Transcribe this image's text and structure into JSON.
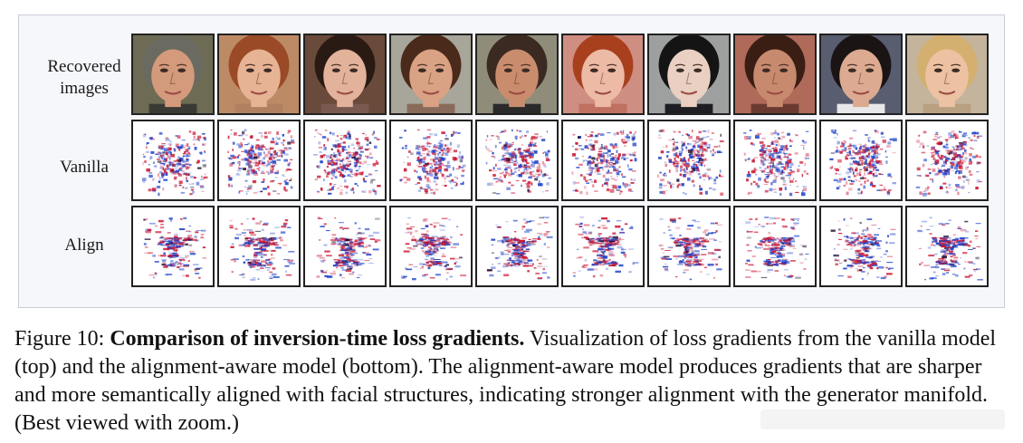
{
  "figure": {
    "row_labels": {
      "recovered_line1": "Recovered",
      "recovered_line2": "images",
      "vanilla": "Vanilla",
      "align": "Align"
    },
    "faces": [
      {
        "skin": "#d49a7c",
        "hair": "#6b6a60",
        "bg": "#6e6b55",
        "shirt": "#3a3a34"
      },
      {
        "skin": "#e6b394",
        "hair": "#9a4a26",
        "bg": "#bd8a66",
        "shirt": "#b08060"
      },
      {
        "skin": "#e3b29b",
        "hair": "#2a1a14",
        "bg": "#6a4a3a",
        "shirt": "#7a5a50"
      },
      {
        "skin": "#d9a284",
        "hair": "#4a2a1a",
        "bg": "#a8a59a",
        "shirt": "#8a6a5a"
      },
      {
        "skin": "#c98d6e",
        "hair": "#3a2a22",
        "bg": "#8f8d7a",
        "shirt": "#2a2a2a"
      },
      {
        "skin": "#edbaa6",
        "hair": "#a8401e",
        "bg": "#cf8e82",
        "shirt": "#c07060"
      },
      {
        "skin": "#e9d0c2",
        "hair": "#141414",
        "bg": "#9ea0a0",
        "shirt": "#1e1e22"
      },
      {
        "skin": "#c88a6e",
        "hair": "#3a1e14",
        "bg": "#b06a5a",
        "shirt": "#6a3a30"
      },
      {
        "skin": "#dcaa90",
        "hair": "#1a1414",
        "bg": "#595d70",
        "shirt": "#e8e8ea"
      },
      {
        "skin": "#ecc2a2",
        "hair": "#d4b070",
        "bg": "#c4b49c",
        "shirt": "#b8a080"
      }
    ],
    "gradient_colors": {
      "red": "#c8102e",
      "blue": "#1a3ec8",
      "dark": "#1a0a30"
    }
  },
  "caption": {
    "label": "Figure 10:",
    "title": "Comparison of inversion-time loss gradients.",
    "body": "Visualization of loss gradients from the vanilla model (top) and the alignment-aware model (bottom). The alignment-aware model produces gradients that are sharper and more semantically aligned with facial structures, indicating stronger alignment with the generator manifold. (Best viewed with zoom.)"
  }
}
